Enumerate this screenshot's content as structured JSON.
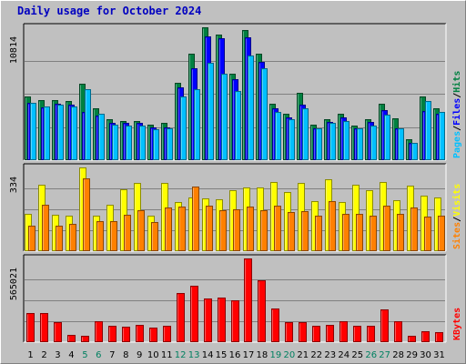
{
  "title": "Daily usage for October 2024",
  "colors": {
    "hits": "#008040",
    "files": "#0000ff",
    "pages": "#00c0ff",
    "visits": "#ffff00",
    "sites": "#ff8000",
    "kbytes": "#ff0000",
    "weekend_label": "#008060",
    "weekday_label": "#000000",
    "panel_bg": "#c0c0c0",
    "grid": "#808080"
  },
  "chart_data": [
    {
      "type": "bar",
      "panel": "hits-files-pages",
      "x": [
        1,
        2,
        3,
        4,
        5,
        6,
        7,
        8,
        9,
        10,
        11,
        12,
        13,
        14,
        15,
        16,
        17,
        18,
        19,
        20,
        21,
        22,
        23,
        24,
        25,
        26,
        27,
        28,
        29,
        30,
        31
      ],
      "max_label": "10814",
      "ylim": [
        0,
        10814
      ],
      "legend": [
        {
          "label": "Hits",
          "color": "#008040"
        },
        {
          "label": "Files",
          "color": "#0000ff"
        },
        {
          "label": "Pages",
          "color": "#00c0ff"
        }
      ],
      "series": [
        {
          "name": "Hits",
          "values": [
            5200,
            4900,
            4900,
            4800,
            6200,
            4200,
            3300,
            3200,
            3200,
            2900,
            3000,
            6300,
            8700,
            10800,
            10200,
            7000,
            10600,
            8700,
            4600,
            3800,
            5500,
            2900,
            3300,
            3800,
            2800,
            3300,
            4600,
            3400,
            1700,
            5200,
            4200
          ]
        },
        {
          "name": "Files",
          "values": [
            4700,
            4300,
            4600,
            4500,
            3900,
            3600,
            3000,
            3000,
            3000,
            2700,
            2700,
            5900,
            7500,
            10100,
            9900,
            6600,
            10000,
            8000,
            4200,
            3500,
            4500,
            2600,
            3100,
            3500,
            2600,
            3100,
            4100,
            2600,
            1400,
            4000,
            3800
          ]
        },
        {
          "name": "Pages",
          "values": [
            4700,
            4400,
            4500,
            4400,
            5800,
            3800,
            2900,
            2800,
            2800,
            2500,
            2600,
            5200,
            5800,
            7900,
            7000,
            5600,
            8500,
            7500,
            3900,
            3300,
            4200,
            2600,
            3000,
            3200,
            2600,
            2800,
            3700,
            2600,
            1400,
            4800,
            3900
          ]
        }
      ]
    },
    {
      "type": "bar",
      "panel": "visits-sites",
      "x": [
        1,
        2,
        3,
        4,
        5,
        6,
        7,
        8,
        9,
        10,
        11,
        12,
        13,
        14,
        15,
        16,
        17,
        18,
        19,
        20,
        21,
        22,
        23,
        24,
        25,
        26,
        27,
        28,
        29,
        30,
        31
      ],
      "max_label": "334",
      "ylim": [
        0,
        334
      ],
      "legend": [
        {
          "label": "Visits",
          "color": "#ffff00"
        },
        {
          "label": "Sites",
          "color": "#ff8000"
        }
      ],
      "series": [
        {
          "name": "Visits",
          "values": [
            150,
            265,
            145,
            140,
            334,
            140,
            185,
            247,
            272,
            140,
            272,
            195,
            213,
            210,
            208,
            245,
            255,
            253,
            275,
            235,
            272,
            200,
            288,
            195,
            265,
            243,
            275,
            203,
            260,
            220,
            213
          ]
        },
        {
          "name": "Sites",
          "values": [
            100,
            185,
            100,
            110,
            290,
            120,
            120,
            145,
            165,
            115,
            173,
            178,
            258,
            180,
            163,
            168,
            178,
            163,
            180,
            155,
            160,
            143,
            198,
            148,
            148,
            140,
            180,
            148,
            175,
            138,
            140
          ]
        }
      ]
    },
    {
      "type": "bar",
      "panel": "kbytes",
      "x": [
        1,
        2,
        3,
        4,
        5,
        6,
        7,
        8,
        9,
        10,
        11,
        12,
        13,
        14,
        15,
        16,
        17,
        18,
        19,
        20,
        21,
        22,
        23,
        24,
        25,
        26,
        27,
        28,
        29,
        30,
        31
      ],
      "max_label": "565021",
      "ylim": [
        0,
        565021
      ],
      "legend": [
        {
          "label": "KBytes",
          "color": "#ff0000"
        }
      ],
      "series": [
        {
          "name": "KBytes",
          "values": [
            195000,
            195000,
            135000,
            48000,
            45000,
            140000,
            110000,
            105000,
            115000,
            100000,
            110000,
            333000,
            382000,
            295000,
            298000,
            283000,
            565021,
            415000,
            230000,
            135000,
            135000,
            110000,
            115000,
            140000,
            110000,
            110000,
            220000,
            140000,
            45000,
            75000,
            70000
          ]
        }
      ]
    }
  ]
}
